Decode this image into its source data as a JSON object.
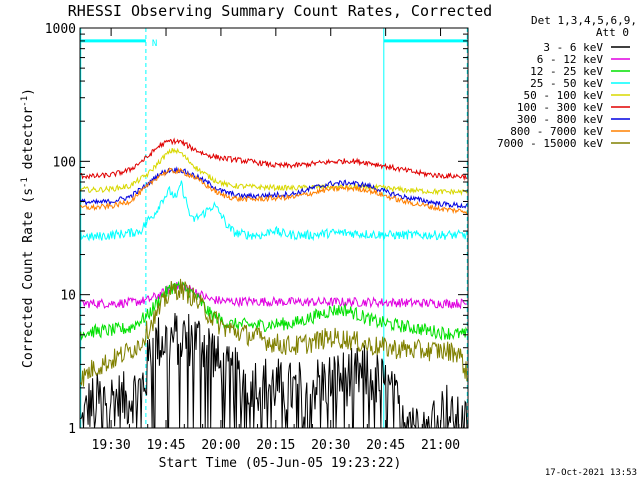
{
  "chart_data": {
    "type": "line",
    "title": "RHESSI Observing Summary Count Rates, Corrected",
    "xlabel": "Start Time (05-Jun-05 19:23:22)",
    "ylabel": "Corrected Count Rate (s",
    "ylabel_sup1": "-1",
    "ylabel_mid": " detector",
    "ylabel_sup2": "-1",
    "ylabel_end": ")",
    "yscale": "log",
    "ylim": [
      1,
      1000
    ],
    "yticks": [
      {
        "value": 1,
        "label": "1"
      },
      {
        "value": 10,
        "label": "10"
      },
      {
        "value": 100,
        "label": "100"
      },
      {
        "value": 1000,
        "label": "1000"
      }
    ],
    "xlim_minutes": [
      -8.5,
      97.5
    ],
    "xticks": [
      {
        "minute": 0,
        "label": "19:30"
      },
      {
        "minute": 15,
        "label": "19:45"
      },
      {
        "minute": 30,
        "label": "20:00"
      },
      {
        "minute": 45,
        "label": "20:15"
      },
      {
        "minute": 60,
        "label": "20:30"
      },
      {
        "minute": 75,
        "label": "20:45"
      },
      {
        "minute": 90,
        "label": "21:00"
      }
    ],
    "night_marker": "N",
    "night_intervals_minutes": [
      [
        -8.3,
        9.5
      ],
      [
        74.5,
        97.3
      ]
    ],
    "night_level": 800,
    "legend_header": [
      "Det 1,3,4,5,6,9,",
      "Att 0"
    ],
    "series": [
      {
        "name": "3 - 6 keV",
        "color": "#000000",
        "points": [
          [
            -8.3,
            1.0
          ],
          [
            -6,
            1.5
          ],
          [
            -4,
            1.6
          ],
          [
            0,
            1.7
          ],
          [
            4,
            1.6
          ],
          [
            8,
            2.0
          ],
          [
            9.5,
            2.4
          ],
          [
            11,
            4.2
          ],
          [
            15,
            4.6
          ],
          [
            20,
            4.8
          ],
          [
            25,
            4.5
          ],
          [
            28,
            3.8
          ],
          [
            30,
            2.6
          ],
          [
            35,
            2.4
          ],
          [
            40,
            2.2
          ],
          [
            45,
            2.1
          ],
          [
            50,
            1.9
          ],
          [
            55,
            2.1
          ],
          [
            60,
            2.3
          ],
          [
            65,
            2.4
          ],
          [
            70,
            2.6
          ],
          [
            74.5,
            2.1
          ],
          [
            78,
            1.5
          ],
          [
            82,
            1.3
          ],
          [
            86,
            1.2
          ],
          [
            90,
            1.3
          ],
          [
            92,
            1.4
          ],
          [
            93,
            1.1
          ],
          [
            97.3,
            1.0
          ]
        ]
      },
      {
        "name": "6 - 12 keV",
        "color": "#e000e0",
        "points": [
          [
            -8.3,
            8.5
          ],
          [
            -5,
            8.6
          ],
          [
            0,
            8.6
          ],
          [
            5,
            8.7
          ],
          [
            10,
            9.1
          ],
          [
            14,
            10.2
          ],
          [
            17,
            11.5
          ],
          [
            20,
            11.6
          ],
          [
            23,
            10.5
          ],
          [
            27,
            9.2
          ],
          [
            32,
            8.9
          ],
          [
            40,
            8.9
          ],
          [
            50,
            8.8
          ],
          [
            60,
            8.8
          ],
          [
            70,
            8.8
          ],
          [
            80,
            8.7
          ],
          [
            90,
            8.6
          ],
          [
            97.3,
            8.6
          ]
        ]
      },
      {
        "name": "12 - 25 keV",
        "color": "#00e000",
        "points": [
          [
            -8.3,
            5.2
          ],
          [
            -5,
            5.3
          ],
          [
            0,
            5.4
          ],
          [
            5,
            5.6
          ],
          [
            10,
            7.0
          ],
          [
            14,
            9.8
          ],
          [
            17,
            11.5
          ],
          [
            20,
            11.2
          ],
          [
            23,
            9.8
          ],
          [
            27,
            7.2
          ],
          [
            32,
            6.0
          ],
          [
            40,
            5.9
          ],
          [
            50,
            6.1
          ],
          [
            55,
            6.8
          ],
          [
            60,
            7.6
          ],
          [
            64,
            7.7
          ],
          [
            68,
            7.0
          ],
          [
            72,
            6.3
          ],
          [
            78,
            5.9
          ],
          [
            85,
            5.5
          ],
          [
            90,
            5.2
          ],
          [
            97.3,
            5.0
          ]
        ]
      },
      {
        "name": "25 - 50 keV",
        "color": "#00ffff",
        "points": [
          [
            -8.3,
            28
          ],
          [
            -5,
            27
          ],
          [
            0,
            28
          ],
          [
            5,
            29
          ],
          [
            8,
            30
          ],
          [
            10,
            36
          ],
          [
            12,
            41
          ],
          [
            14,
            52
          ],
          [
            16,
            60
          ],
          [
            18,
            52
          ],
          [
            19,
            70
          ],
          [
            20,
            56
          ],
          [
            22,
            36
          ],
          [
            25,
            40
          ],
          [
            28,
            47
          ],
          [
            30,
            40
          ],
          [
            32,
            32
          ],
          [
            34,
            29
          ],
          [
            38,
            28
          ],
          [
            42,
            28
          ],
          [
            44,
            31
          ],
          [
            46,
            29
          ],
          [
            50,
            28
          ],
          [
            55,
            28
          ],
          [
            60,
            29
          ],
          [
            65,
            29
          ],
          [
            70,
            28.5
          ],
          [
            75,
            28
          ],
          [
            80,
            28
          ],
          [
            85,
            28
          ],
          [
            90,
            28
          ],
          [
            97.3,
            28
          ]
        ]
      },
      {
        "name": "50 - 100 keV",
        "color": "#d8d800",
        "points": [
          [
            -8.3,
            62
          ],
          [
            -5,
            61
          ],
          [
            0,
            62
          ],
          [
            5,
            65
          ],
          [
            10,
            80
          ],
          [
            13,
            98
          ],
          [
            15,
            112
          ],
          [
            17,
            122
          ],
          [
            19,
            116
          ],
          [
            21,
            102
          ],
          [
            24,
            86
          ],
          [
            28,
            73
          ],
          [
            32,
            66
          ],
          [
            40,
            64
          ],
          [
            50,
            63
          ],
          [
            55,
            64
          ],
          [
            60,
            64
          ],
          [
            70,
            64
          ],
          [
            75,
            63
          ],
          [
            80,
            61
          ],
          [
            85,
            60
          ],
          [
            90,
            59
          ],
          [
            97.3,
            59
          ]
        ]
      },
      {
        "name": "100 - 300 keV",
        "color": "#e00000",
        "points": [
          [
            -8.3,
            78
          ],
          [
            -5,
            77
          ],
          [
            0,
            79
          ],
          [
            5,
            86
          ],
          [
            10,
            108
          ],
          [
            13,
            130
          ],
          [
            16,
            142
          ],
          [
            19,
            140
          ],
          [
            22,
            126
          ],
          [
            26,
            112
          ],
          [
            30,
            106
          ],
          [
            35,
            102
          ],
          [
            40,
            98
          ],
          [
            45,
            93
          ],
          [
            50,
            93
          ],
          [
            55,
            96
          ],
          [
            60,
            99
          ],
          [
            65,
            101
          ],
          [
            70,
            98
          ],
          [
            75,
            92
          ],
          [
            80,
            86
          ],
          [
            85,
            81
          ],
          [
            90,
            78
          ],
          [
            97.3,
            77
          ]
        ]
      },
      {
        "name": "300 - 800 keV",
        "color": "#0000e0",
        "points": [
          [
            -8.3,
            50
          ],
          [
            -5,
            49
          ],
          [
            0,
            50
          ],
          [
            5,
            54
          ],
          [
            10,
            67
          ],
          [
            13,
            80
          ],
          [
            16,
            86
          ],
          [
            19,
            86
          ],
          [
            22,
            80
          ],
          [
            26,
            70
          ],
          [
            30,
            60
          ],
          [
            35,
            55
          ],
          [
            40,
            55
          ],
          [
            45,
            56
          ],
          [
            50,
            57
          ],
          [
            55,
            63
          ],
          [
            60,
            68
          ],
          [
            65,
            69
          ],
          [
            70,
            66
          ],
          [
            75,
            59
          ],
          [
            80,
            54
          ],
          [
            85,
            51
          ],
          [
            90,
            48
          ],
          [
            97.3,
            46
          ]
        ]
      },
      {
        "name": "800 - 7000 keV",
        "color": "#ff8000",
        "points": [
          [
            -8.3,
            45
          ],
          [
            -5,
            45
          ],
          [
            0,
            46
          ],
          [
            5,
            50
          ],
          [
            10,
            65
          ],
          [
            13,
            78
          ],
          [
            16,
            85
          ],
          [
            19,
            84
          ],
          [
            22,
            78
          ],
          [
            26,
            66
          ],
          [
            30,
            56
          ],
          [
            35,
            52
          ],
          [
            40,
            52
          ],
          [
            45,
            53
          ],
          [
            50,
            54
          ],
          [
            55,
            58
          ],
          [
            60,
            62
          ],
          [
            65,
            63
          ],
          [
            70,
            61
          ],
          [
            75,
            55
          ],
          [
            80,
            50
          ],
          [
            85,
            47
          ],
          [
            90,
            44
          ],
          [
            97.3,
            42
          ]
        ]
      },
      {
        "name": "7000 - 15000 keV",
        "color": "#808000",
        "points": [
          [
            -8.3,
            2.3
          ],
          [
            -5,
            2.8
          ],
          [
            0,
            3.2
          ],
          [
            5,
            3.8
          ],
          [
            8,
            4.3
          ],
          [
            10,
            5.5
          ],
          [
            13,
            7.5
          ],
          [
            16,
            10.5
          ],
          [
            19,
            11.2
          ],
          [
            22,
            9.8
          ],
          [
            26,
            7.5
          ],
          [
            30,
            5.8
          ],
          [
            35,
            5.2
          ],
          [
            40,
            4.8
          ],
          [
            45,
            4.3
          ],
          [
            50,
            4.1
          ],
          [
            55,
            4.4
          ],
          [
            60,
            4.8
          ],
          [
            65,
            4.6
          ],
          [
            70,
            4.2
          ],
          [
            75,
            4.0
          ],
          [
            80,
            3.9
          ],
          [
            85,
            3.8
          ],
          [
            90,
            3.8
          ],
          [
            95,
            3.7
          ],
          [
            97.3,
            2.5
          ]
        ]
      }
    ]
  },
  "footer": {
    "timestamp": "17-Oct-2021 13:53"
  },
  "colors": {
    "night": "#00ffff",
    "background": "#ffffff",
    "axis": "#000000"
  }
}
